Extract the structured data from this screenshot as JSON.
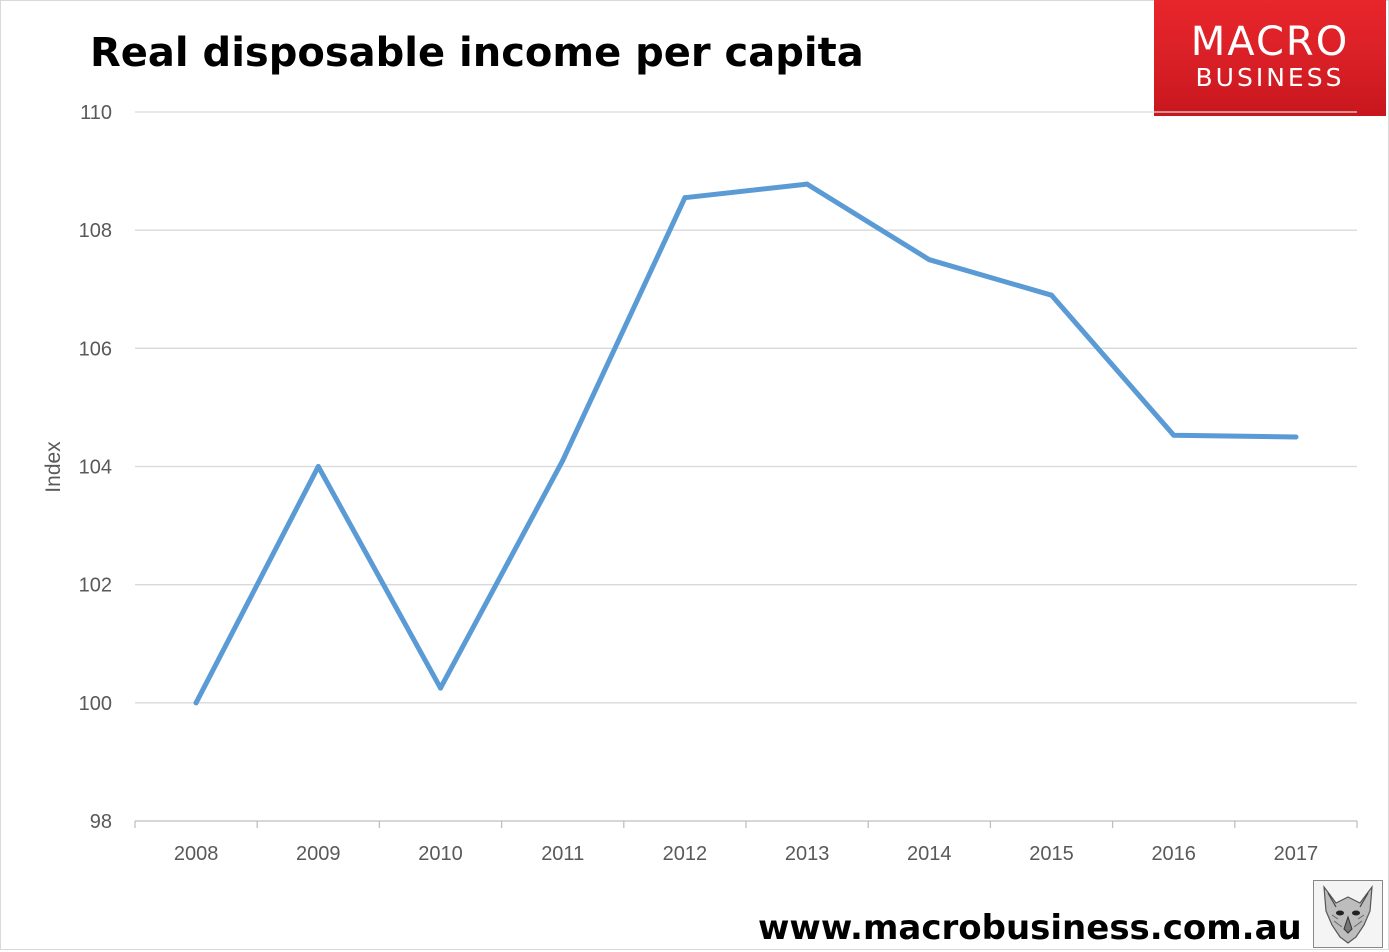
{
  "title": "Real disposable income per capita",
  "logo": {
    "line1": "MACRO",
    "line2": "BUSINESS",
    "color": "#d8262b"
  },
  "website": "www.macrobusiness.com.au",
  "chart_data": {
    "type": "line",
    "title": "Real disposable income per capita",
    "xlabel": "",
    "ylabel": "Index",
    "categories": [
      "2008",
      "2009",
      "2010",
      "2011",
      "2012",
      "2013",
      "2014",
      "2015",
      "2016",
      "2017"
    ],
    "series": [
      {
        "values": [
          100.0,
          104.0,
          100.25,
          104.1,
          108.55,
          108.78,
          107.5,
          106.9,
          104.53,
          104.5
        ],
        "color": "#5b9bd5"
      }
    ],
    "ylim": [
      98,
      110
    ],
    "yticks": [
      "98",
      "100",
      "102",
      "104",
      "106",
      "108",
      "110"
    ],
    "grid": true,
    "legend": "none"
  },
  "icons": {
    "corner_icon": "wolf-head-icon"
  }
}
